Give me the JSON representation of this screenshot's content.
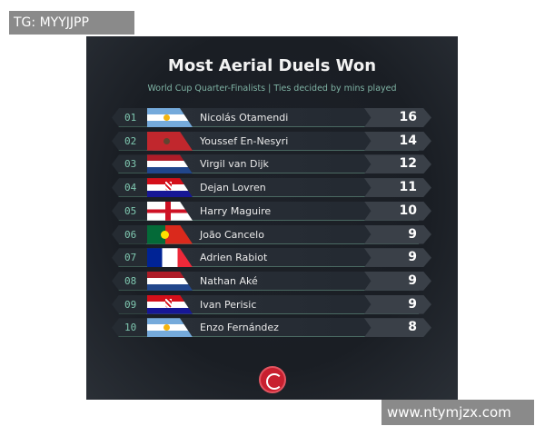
{
  "title": "Most Aerial Duels Won",
  "subtitle": "World Cup Quarter-Finalists | Ties decided by mins played",
  "rows": [
    {
      "rank": "01",
      "flag": "argentina",
      "name": "Nicolás Otamendi",
      "score": "16"
    },
    {
      "rank": "02",
      "flag": "morocco",
      "name": "Youssef En-Nesyri",
      "score": "14"
    },
    {
      "rank": "03",
      "flag": "netherlands",
      "name": "Virgil van Dijk",
      "score": "12"
    },
    {
      "rank": "04",
      "flag": "croatia",
      "name": "Dejan Lovren",
      "score": "11"
    },
    {
      "rank": "05",
      "flag": "england",
      "name": "Harry Maguire",
      "score": "10"
    },
    {
      "rank": "06",
      "flag": "portugal",
      "name": "João Cancelo",
      "score": "9"
    },
    {
      "rank": "07",
      "flag": "france",
      "name": "Adrien Rabiot",
      "score": "9"
    },
    {
      "rank": "08",
      "flag": "netherlands",
      "name": "Nathan Aké",
      "score": "9"
    },
    {
      "rank": "09",
      "flag": "croatia",
      "name": "Ivan Perisic",
      "score": "9"
    },
    {
      "rank": "10",
      "flag": "argentina",
      "name": "Enzo Fernández",
      "score": "8"
    }
  ],
  "watermarks": {
    "top": "TG: MYYJJPP",
    "bottom": "www.ntymjzx.com"
  },
  "colors": {
    "accent": "#7fc7b0",
    "logo": "#c8202f",
    "background": "#1a1e24"
  }
}
